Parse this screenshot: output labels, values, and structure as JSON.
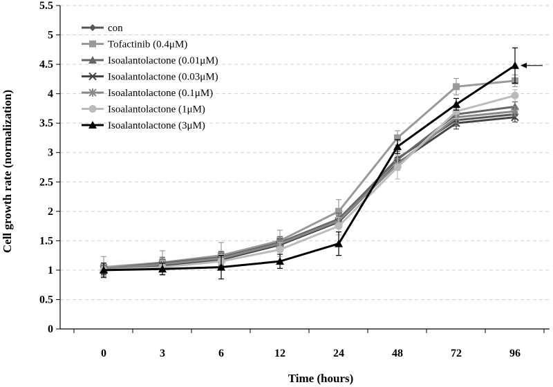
{
  "chart_data": {
    "type": "line",
    "title": "",
    "xlabel": "Time (hours)",
    "ylabel": "Cell growth rate (normalization)",
    "categories": [
      "0",
      "3",
      "6",
      "12",
      "24",
      "48",
      "72",
      "96"
    ],
    "ylim": [
      0,
      5.5
    ],
    "yticks": [
      "0",
      "0.5",
      "1",
      "1.5",
      "2",
      "2.5",
      "3",
      "3.5",
      "4",
      "4.5",
      "5",
      "5.5"
    ],
    "grid": true,
    "legend_position": "top-left",
    "series": [
      {
        "name": "con",
        "marker": "diamond",
        "color": "#555555",
        "values": [
          1.0,
          1.1,
          1.2,
          1.45,
          1.85,
          2.9,
          3.55,
          3.65
        ],
        "errors": [
          0.08,
          0.1,
          0.12,
          0.12,
          0.12,
          0.12,
          0.1,
          0.08
        ]
      },
      {
        "name": "Tofactinib (0.4μM)",
        "marker": "square",
        "color": "#999999",
        "values": [
          1.05,
          1.13,
          1.25,
          1.5,
          2.0,
          3.25,
          4.12,
          4.22
        ],
        "errors": [
          0.18,
          0.2,
          0.22,
          0.18,
          0.2,
          0.12,
          0.14,
          0.1
        ]
      },
      {
        "name": "Isoalantolactone (0.01μM)",
        "marker": "triangle",
        "color": "#666666",
        "values": [
          1.02,
          1.12,
          1.22,
          1.47,
          1.87,
          2.88,
          3.65,
          3.78
        ],
        "errors": [
          0.08,
          0.1,
          0.1,
          0.1,
          0.1,
          0.1,
          0.1,
          0.08
        ]
      },
      {
        "name": "Isoalantolactone (0.03μM)",
        "marker": "x",
        "color": "#444444",
        "values": [
          1.01,
          1.08,
          1.18,
          1.43,
          1.82,
          2.82,
          3.5,
          3.6
        ],
        "errors": [
          0.08,
          0.1,
          0.1,
          0.1,
          0.1,
          0.1,
          0.1,
          0.08
        ]
      },
      {
        "name": "Isoalantolactone (0.1μM)",
        "marker": "star",
        "color": "#888888",
        "values": [
          1.02,
          1.1,
          1.2,
          1.45,
          1.84,
          2.8,
          3.6,
          3.7
        ],
        "errors": [
          0.08,
          0.1,
          0.1,
          0.1,
          0.1,
          0.1,
          0.1,
          0.08
        ]
      },
      {
        "name": "Isoalantolactone (1μM)",
        "marker": "circle",
        "color": "#bbbbbb",
        "values": [
          1.0,
          1.05,
          1.15,
          1.35,
          1.75,
          2.75,
          3.7,
          3.97
        ],
        "errors": [
          0.1,
          0.12,
          0.12,
          0.12,
          0.15,
          0.2,
          0.12,
          0.1
        ]
      },
      {
        "name": "Isoalantolactone (3μM)",
        "marker": "triangle",
        "color": "#000000",
        "values": [
          1.0,
          1.02,
          1.05,
          1.15,
          1.45,
          3.1,
          3.82,
          4.48
        ],
        "errors": [
          0.12,
          0.1,
          0.2,
          0.12,
          0.2,
          0.12,
          0.1,
          0.3
        ]
      }
    ]
  }
}
